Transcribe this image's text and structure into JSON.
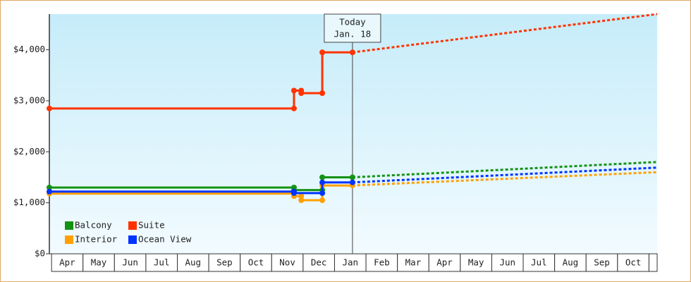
{
  "chart_data": {
    "type": "line",
    "xlim": [
      -0.07,
      19.26
    ],
    "xticks": [
      {
        "value": 0.5,
        "label": "Apr"
      },
      {
        "value": 1.5,
        "label": "May"
      },
      {
        "value": 2.5,
        "label": "Jun"
      },
      {
        "value": 3.5,
        "label": "Jul"
      },
      {
        "value": 4.5,
        "label": "Aug"
      },
      {
        "value": 5.5,
        "label": "Sep"
      },
      {
        "value": 6.5,
        "label": "Oct"
      },
      {
        "value": 7.5,
        "label": "Nov"
      },
      {
        "value": 8.5,
        "label": "Dec"
      },
      {
        "value": 9.5,
        "label": "Jan"
      },
      {
        "value": 10.5,
        "label": "Feb"
      },
      {
        "value": 11.5,
        "label": "Mar"
      },
      {
        "value": 12.5,
        "label": "Apr"
      },
      {
        "value": 13.5,
        "label": "May"
      },
      {
        "value": 14.5,
        "label": "Jun"
      },
      {
        "value": 15.5,
        "label": "Jul"
      },
      {
        "value": 16.5,
        "label": "Aug"
      },
      {
        "value": 17.5,
        "label": "Sep"
      },
      {
        "value": 18.5,
        "label": "Oct"
      }
    ],
    "ylim": [
      0,
      4700
    ],
    "yticks": [
      {
        "value": 0,
        "label": "$0"
      },
      {
        "value": 1000,
        "label": "$1,000"
      },
      {
        "value": 2000,
        "label": "$2,000"
      },
      {
        "value": 3000,
        "label": "$3,000"
      },
      {
        "value": 4000,
        "label": "$4,000"
      }
    ],
    "legend": "lower left",
    "annotation": {
      "x": 9.57,
      "lines": [
        "Today",
        "Jan. 18"
      ]
    },
    "series": [
      {
        "name": "Balcony",
        "color": "#139313",
        "x": [
          -0.07,
          7.71,
          7.71,
          8.61,
          8.61,
          9.57
        ],
        "values": [
          1300,
          1300,
          1250,
          1250,
          1500,
          1500
        ],
        "projection": {
          "x": [
            9.57,
            19.26
          ],
          "values": [
            1500,
            1800
          ]
        }
      },
      {
        "name": "Suite",
        "color": "#ff3300",
        "x": [
          -0.07,
          7.71,
          7.71,
          7.94,
          7.94,
          8.61,
          8.61,
          9.57
        ],
        "values": [
          2850,
          2850,
          3200,
          3200,
          3150,
          3150,
          3950,
          3950
        ],
        "projection": {
          "x": [
            9.57,
            19.26
          ],
          "values": [
            3950,
            4700
          ]
        }
      },
      {
        "name": "Interior",
        "color": "#ffa000",
        "x": [
          -0.07,
          7.71,
          7.71,
          7.94,
          7.94,
          8.61,
          8.61,
          9.57
        ],
        "values": [
          1180,
          1180,
          1130,
          1130,
          1050,
          1050,
          1340,
          1340
        ],
        "projection": {
          "x": [
            9.57,
            19.26
          ],
          "values": [
            1340,
            1600
          ]
        }
      },
      {
        "name": "Ocean View",
        "color": "#0033ff",
        "x": [
          -0.07,
          7.71,
          7.71,
          8.61,
          8.61,
          9.57
        ],
        "values": [
          1220,
          1220,
          1190,
          1190,
          1400,
          1400
        ],
        "projection": {
          "x": [
            9.57,
            19.26
          ],
          "values": [
            1400,
            1690
          ]
        }
      }
    ]
  }
}
